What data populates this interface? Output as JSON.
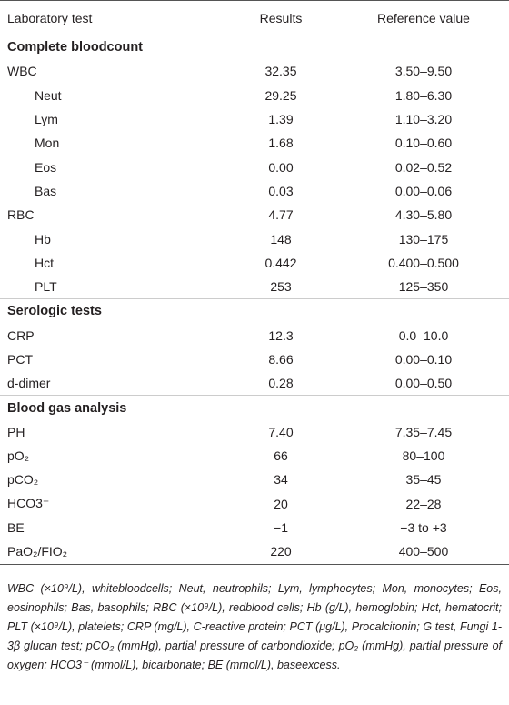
{
  "table": {
    "header": [
      "Laboratory test",
      "Results",
      "Reference value"
    ],
    "sections": [
      {
        "title": "Complete bloodcount",
        "rows": [
          {
            "test": "WBC",
            "result": "32.35",
            "reference": "3.50–9.50",
            "subtests": [
              {
                "test": "Neut",
                "result": "29.25",
                "reference": "1.80–6.30"
              },
              {
                "test": "Lym",
                "result": "1.39",
                "reference": "1.10–3.20"
              },
              {
                "test": "Mon",
                "result": "1.68",
                "reference": "0.10–0.60"
              },
              {
                "test": "Eos",
                "result": "0.00",
                "reference": "0.02–0.52"
              },
              {
                "test": "Bas",
                "result": "0.03",
                "reference": "0.00–0.06"
              }
            ]
          },
          {
            "test": "RBC",
            "result": "4.77",
            "reference": "4.30–5.80",
            "subtests": [
              {
                "test": "Hb",
                "result": "148",
                "reference": "130–175"
              },
              {
                "test": "Hct",
                "result": "0.442",
                "reference": "0.400–0.500"
              },
              {
                "test": "PLT",
                "result": "253",
                "reference": "125–350"
              }
            ]
          }
        ]
      },
      {
        "title": "Serologic tests",
        "rows": [
          {
            "test": "CRP",
            "result": "12.3",
            "reference": "0.0–10.0"
          },
          {
            "test": "PCT",
            "result": "8.66",
            "reference": "0.00–0.10"
          },
          {
            "test": "d-dimer",
            "result": "0.28",
            "reference": "0.00–0.50"
          }
        ]
      },
      {
        "title": "Blood gas analysis",
        "rows": [
          {
            "test": "PH",
            "result": "7.40",
            "reference": "7.35–7.45"
          },
          {
            "test": "pO₂",
            "result": "66",
            "reference": "80–100"
          },
          {
            "test": "pCO₂",
            "result": "34",
            "reference": "35–45"
          },
          {
            "test": "HCO3⁻",
            "result": "20",
            "reference": "22–28"
          },
          {
            "test": "BE",
            "result": "−1",
            "reference": "−3 to +3"
          },
          {
            "test": "PaO₂/FIO₂",
            "result": "220",
            "reference": "400–500"
          }
        ]
      }
    ]
  },
  "footnote": "WBC (×10⁹/L), whitebloodcells; Neut, neutrophils; Lym, lymphocytes; Mon, monocytes; Eos, eosinophils; Bas, basophils; RBC (×10⁹/L), redblood cells; Hb (g/L), hemoglobin; Hct, hematocrit; PLT (×10⁹/L), platelets; CRP (mg/L), C-reactive protein; PCT (μg/L), Procalcitonin; G test, Fungi 1-3β glucan test; pCO₂ (mmHg), partial pressure of carbondioxide; pO₂ (mmHg), partial pressure of oxygen; HCO3⁻ (mmol/L), bicarbonate; BE (mmol/L), baseexcess."
}
